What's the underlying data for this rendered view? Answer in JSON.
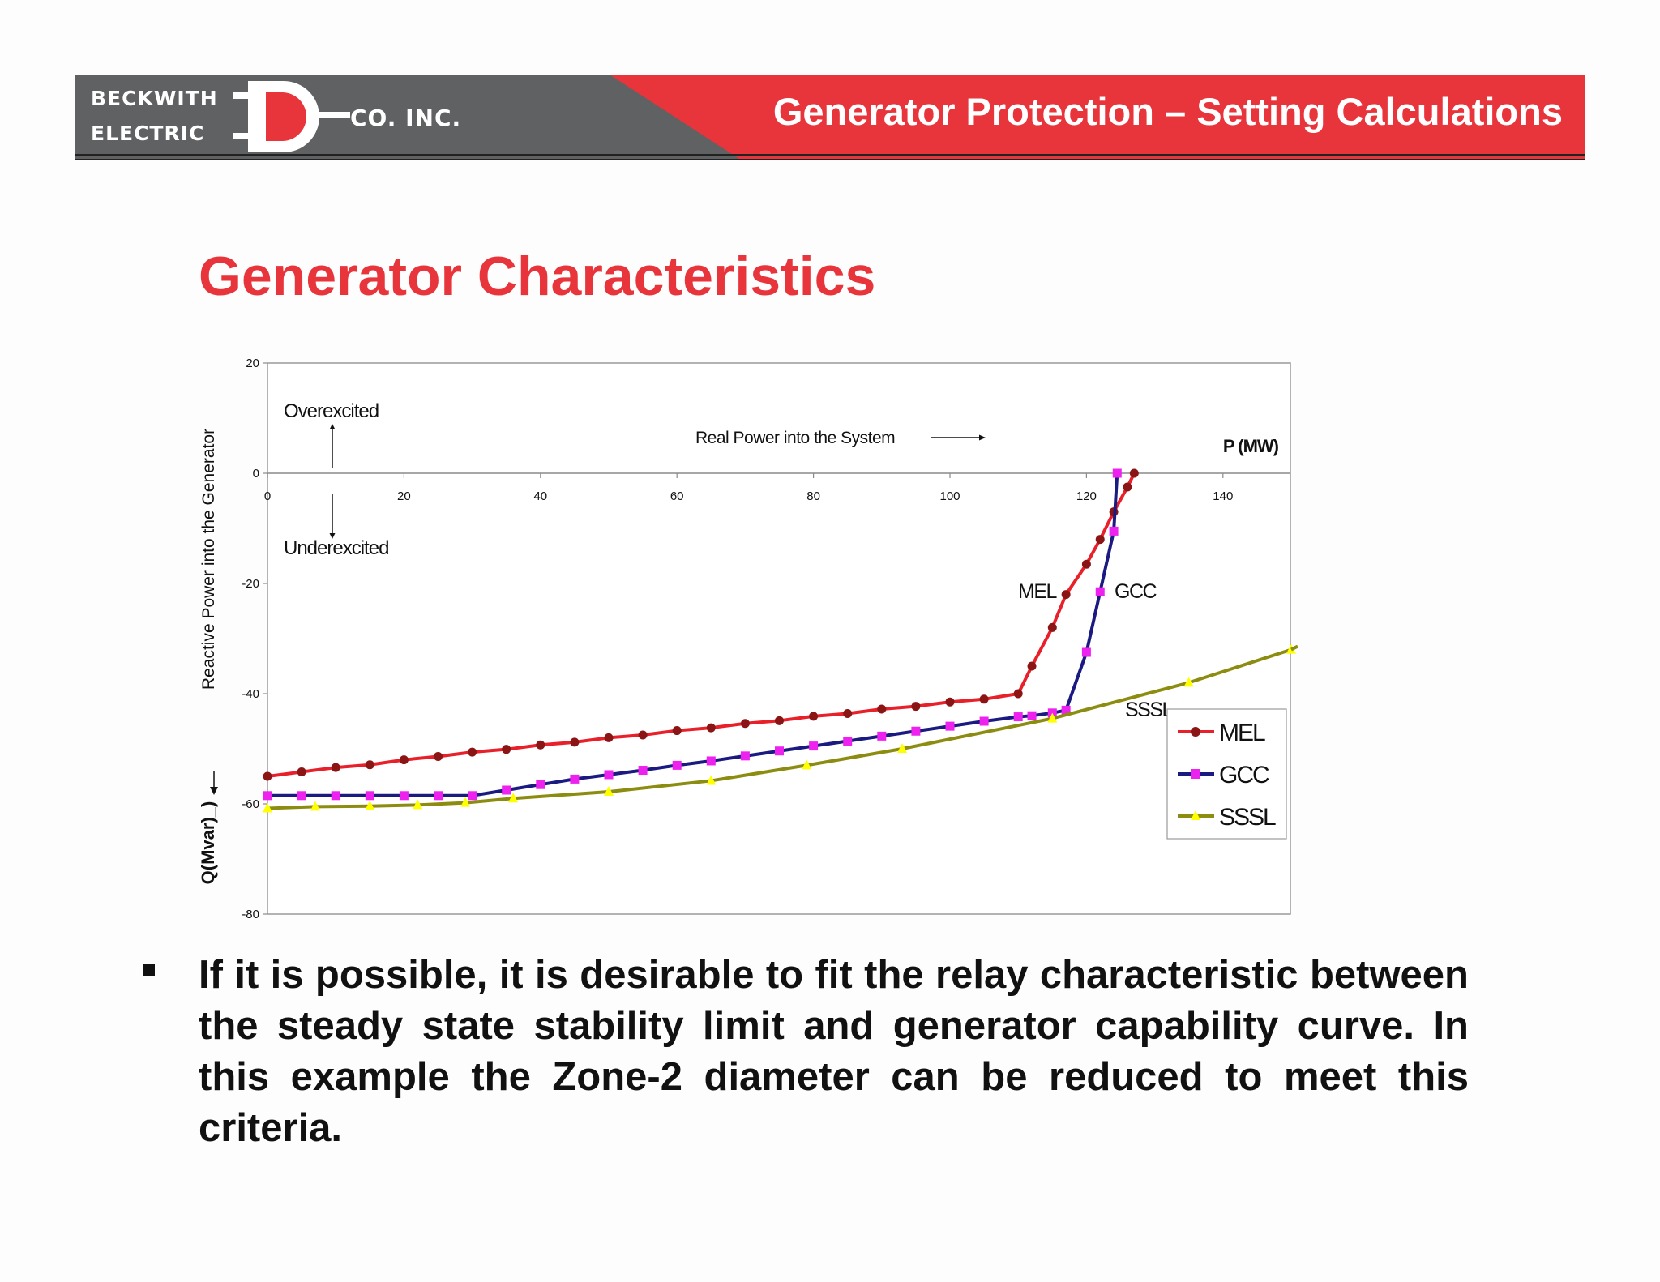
{
  "header": {
    "logo": {
      "line1": "BECKWITH",
      "line2": "ELECTRIC",
      "suffix": "CO. INC.",
      "mark": "D"
    },
    "title": "Generator Protection – Setting Calculations",
    "colors": {
      "gray": "#5f6163",
      "red": "#e8343b"
    }
  },
  "slide": {
    "title": "Generator Characteristics",
    "bullet": "If it is possible, it is desirable to fit the relay characteristic between the steady state stability limit and generator capability curve.  In this example the Zone-2 diameter can be reduced to meet this criteria."
  },
  "chart_data": {
    "type": "line",
    "title": "",
    "xlabel": "P (MW)",
    "ylabel": "Q(Mvar)_)",
    "ylabel_main": "Reactive Power into the Generator",
    "xlim": [
      0,
      150
    ],
    "ylim": [
      -80,
      20
    ],
    "x_ticks": [
      0,
      20,
      40,
      60,
      80,
      100,
      120,
      140
    ],
    "y_ticks": [
      20,
      0,
      -20,
      -40,
      -60,
      -80
    ],
    "grid": false,
    "legend_position": "right",
    "annotations": {
      "overexcited": "Overexcited",
      "underexcited": "Underexcited",
      "real_power": "Real Power into the System",
      "mel": "MEL",
      "gcc": "GCC",
      "sssl": "SSSL"
    },
    "series": [
      {
        "name": "MEL",
        "color": "#e8202a",
        "marker_color": "#8b1414",
        "marker": "circle",
        "points": [
          [
            0,
            -55
          ],
          [
            5,
            -54.2
          ],
          [
            10,
            -53.4
          ],
          [
            15,
            -52.9
          ],
          [
            20,
            -52
          ],
          [
            25,
            -51.4
          ],
          [
            30,
            -50.6
          ],
          [
            35,
            -50.1
          ],
          [
            40,
            -49.3
          ],
          [
            45,
            -48.8
          ],
          [
            50,
            -48
          ],
          [
            55,
            -47.5
          ],
          [
            60,
            -46.7
          ],
          [
            65,
            -46.2
          ],
          [
            70,
            -45.4
          ],
          [
            75,
            -44.9
          ],
          [
            80,
            -44.1
          ],
          [
            85,
            -43.6
          ],
          [
            90,
            -42.8
          ],
          [
            95,
            -42.3
          ],
          [
            100,
            -41.5
          ],
          [
            105,
            -41
          ],
          [
            110,
            -40
          ],
          [
            112,
            -35
          ],
          [
            115,
            -28
          ],
          [
            117,
            -22
          ],
          [
            120,
            -16.5
          ],
          [
            122,
            -12
          ],
          [
            124,
            -7
          ],
          [
            126,
            -2.5
          ],
          [
            127,
            0
          ]
        ]
      },
      {
        "name": "GCC",
        "color": "#1a1a80",
        "marker_color": "#ee22ee",
        "marker": "square",
        "points": [
          [
            0,
            -58.5
          ],
          [
            5,
            -58.5
          ],
          [
            10,
            -58.5
          ],
          [
            15,
            -58.5
          ],
          [
            20,
            -58.5
          ],
          [
            25,
            -58.5
          ],
          [
            30,
            -58.5
          ],
          [
            35,
            -57.5
          ],
          [
            40,
            -56.5
          ],
          [
            45,
            -55.5
          ],
          [
            50,
            -54.7
          ],
          [
            55,
            -53.9
          ],
          [
            60,
            -53
          ],
          [
            65,
            -52.2
          ],
          [
            70,
            -51.3
          ],
          [
            75,
            -50.4
          ],
          [
            80,
            -49.5
          ],
          [
            85,
            -48.6
          ],
          [
            90,
            -47.7
          ],
          [
            95,
            -46.8
          ],
          [
            100,
            -45.9
          ],
          [
            105,
            -45
          ],
          [
            110,
            -44.2
          ],
          [
            112,
            -44
          ],
          [
            115,
            -43.5
          ],
          [
            117,
            -43
          ],
          [
            120,
            -32.5
          ],
          [
            122,
            -21.5
          ],
          [
            124,
            -10.5
          ],
          [
            124.5,
            0
          ]
        ]
      },
      {
        "name": "SSSL",
        "color": "#8c8c10",
        "marker_color": "#ffff00",
        "marker": "triangle",
        "points": [
          [
            0,
            -60.8
          ],
          [
            7,
            -60.5
          ],
          [
            15,
            -60.4
          ],
          [
            22,
            -60.2
          ],
          [
            29,
            -59.8
          ],
          [
            36,
            -59
          ],
          [
            50,
            -57.8
          ],
          [
            65,
            -55.8
          ],
          [
            79,
            -53
          ],
          [
            93,
            -50
          ],
          [
            115,
            -44.5
          ],
          [
            135,
            -38
          ],
          [
            150,
            -32
          ]
        ]
      }
    ]
  }
}
